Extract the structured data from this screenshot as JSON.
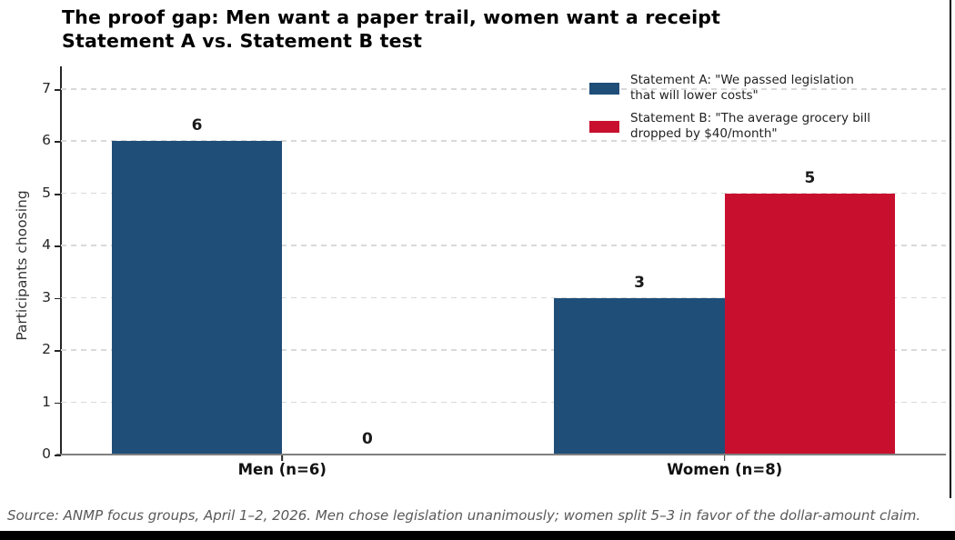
{
  "chart_data": {
    "type": "bar",
    "title": "The proof gap: Men want a paper trail, women want a receipt",
    "subtitle": "Statement A vs. Statement B test",
    "categories": [
      "Men (n=6)",
      "Women (n=8)"
    ],
    "series": [
      {
        "name": "Statement A: \"We passed legislation that will lower costs\"",
        "color": "#1f4e79",
        "values": [
          6,
          3
        ]
      },
      {
        "name": "Statement B: \"The average grocery bill dropped by $40/month\"",
        "color": "#c8102e",
        "values": [
          0,
          5
        ]
      }
    ],
    "ylabel": "Participants choosing",
    "xlabel": "",
    "ylim": [
      0,
      7.4
    ],
    "yticks": [
      0,
      1,
      2,
      3,
      4,
      5,
      6,
      7
    ],
    "grid": "horizontal-dashed",
    "legend_position": "upper-right",
    "legend": [
      {
        "swatch_color": "#1f4e79",
        "lines": [
          "Statement A: \"We passed legislation",
          "that will lower costs\""
        ]
      },
      {
        "swatch_color": "#c8102e",
        "lines": [
          "Statement B: \"The average grocery bill",
          "dropped by $40/month\""
        ]
      }
    ],
    "bar_value_labels": [
      6,
      0,
      3,
      5
    ]
  },
  "footer": {
    "source": "Source: ANMP focus groups, April 1–2, 2026. Men chose legislation unanimously; women split 5–3 in favor of the dollar-amount claim."
  },
  "style": {
    "statement_a_color": "#1f4e79",
    "statement_b_color": "#c8102e",
    "gridline_color": "#d9d9d9",
    "source_text_color": "#595959"
  }
}
